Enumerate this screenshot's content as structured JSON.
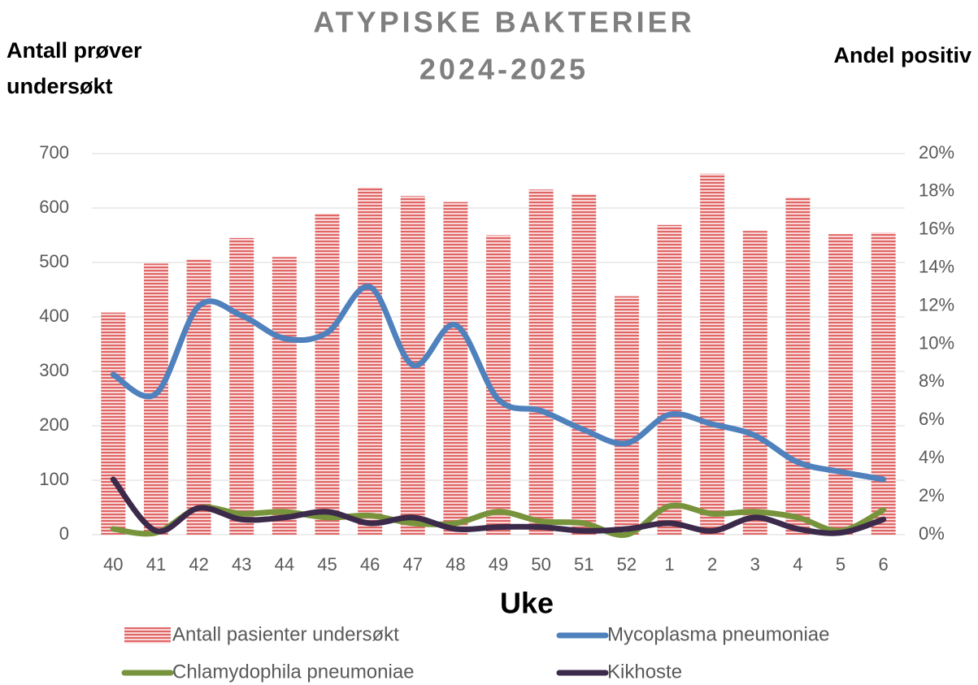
{
  "chart_data": {
    "type": "bar-line",
    "title": [
      "ATYPISKE BAKTERIER",
      "2024-2025"
    ],
    "ylabel": [
      "Antall prøver",
      "undersøkt"
    ],
    "y2label": "Andel positiv",
    "xlabel": "Uke",
    "categories": [
      "40",
      "41",
      "42",
      "43",
      "44",
      "45",
      "46",
      "47",
      "48",
      "49",
      "50",
      "51",
      "52",
      "1",
      "2",
      "3",
      "4",
      "5",
      "6"
    ],
    "series": [
      {
        "name": "Antall pasienter undersøkt",
        "type": "bar",
        "color": "#e06666",
        "axis": "y",
        "values": [
          408,
          498,
          506,
          545,
          510,
          590,
          638,
          622,
          611,
          550,
          634,
          626,
          438,
          569,
          663,
          558,
          620,
          552,
          555
        ]
      },
      {
        "name": "Mycoplasma pneumoniae",
        "type": "line",
        "color": "#4f81bd",
        "axis": "y2",
        "values": [
          8.4,
          7.4,
          12.0,
          11.5,
          10.3,
          10.6,
          13.0,
          8.9,
          11.0,
          7.1,
          6.5,
          5.5,
          4.8,
          6.3,
          5.8,
          5.2,
          3.8,
          3.3,
          2.9
        ]
      },
      {
        "name": "Chlamydophila pneumoniae",
        "type": "line",
        "color": "#77933c",
        "axis": "y2",
        "values": [
          0.3,
          0.1,
          1.4,
          1.1,
          1.2,
          0.9,
          1.0,
          0.6,
          0.6,
          1.2,
          0.7,
          0.6,
          0.0,
          1.5,
          1.1,
          1.2,
          0.9,
          0.2,
          1.3
        ]
      },
      {
        "name": "Kikhoste",
        "type": "line",
        "color": "#3b2a4a",
        "axis": "y2",
        "values": [
          2.9,
          0.2,
          1.4,
          0.8,
          0.9,
          1.2,
          0.6,
          0.9,
          0.3,
          0.4,
          0.4,
          0.2,
          0.3,
          0.6,
          0.2,
          0.9,
          0.3,
          0.1,
          0.8
        ]
      }
    ],
    "ylim": [
      0,
      700
    ],
    "yticks": [
      0,
      100,
      200,
      300,
      400,
      500,
      600,
      700
    ],
    "y2lim": [
      0,
      20
    ],
    "y2ticks": [
      {
        "value": 0,
        "label": "0%"
      },
      {
        "value": 2,
        "label": "2%"
      },
      {
        "value": 4,
        "label": "4%"
      },
      {
        "value": 6,
        "label": "6%"
      },
      {
        "value": 8,
        "label": "8%"
      },
      {
        "value": 10,
        "label": "10%"
      },
      {
        "value": 12,
        "label": "12%"
      },
      {
        "value": 14,
        "label": "14%"
      },
      {
        "value": 16,
        "label": "16%"
      },
      {
        "value": 18,
        "label": "18%"
      },
      {
        "value": 20,
        "label": "20%"
      }
    ],
    "grid": true
  }
}
